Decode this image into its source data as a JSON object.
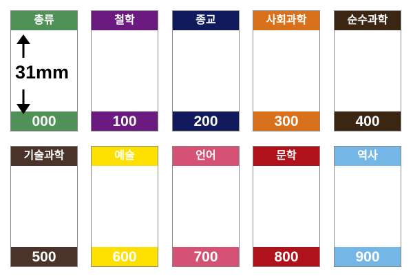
{
  "dimension_label": "31mm",
  "labels": [
    {
      "name": "총류",
      "code": "000",
      "color": "#4f9156"
    },
    {
      "name": "철학",
      "code": "100",
      "color": "#6b1a7f"
    },
    {
      "name": "종교",
      "code": "200",
      "color": "#111a5c"
    },
    {
      "name": "사회과학",
      "code": "300",
      "color": "#d9711c"
    },
    {
      "name": "순수과학",
      "code": "400",
      "color": "#3b2614"
    },
    {
      "name": "기술과학",
      "code": "500",
      "color": "#4a3329"
    },
    {
      "name": "예술",
      "code": "600",
      "color": "#fde000"
    },
    {
      "name": "언어",
      "code": "700",
      "color": "#d65274"
    },
    {
      "name": "문학",
      "code": "800",
      "color": "#b0121c"
    },
    {
      "name": "역사",
      "code": "900",
      "color": "#74b7e6"
    }
  ]
}
